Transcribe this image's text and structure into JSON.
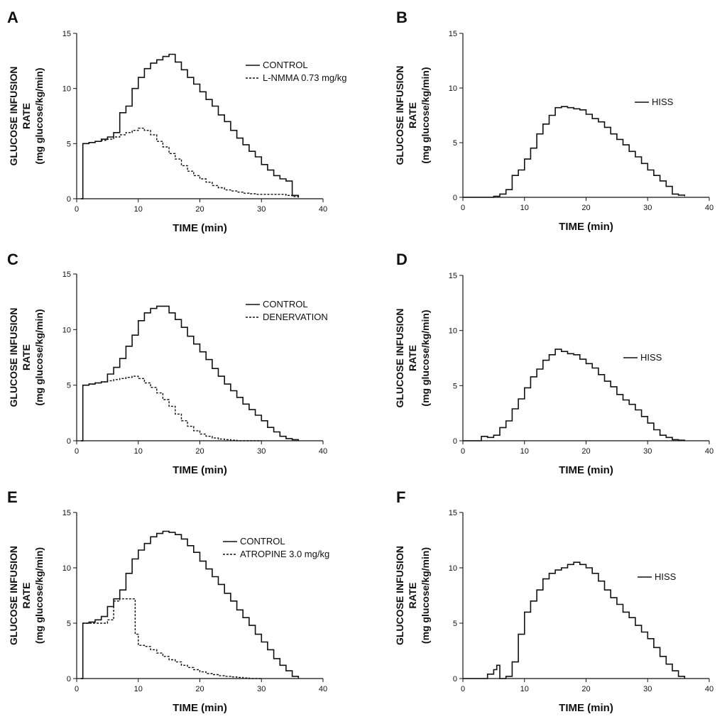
{
  "chart_data": [
    {
      "panel": "A",
      "type": "line",
      "xlabel": "TIME (min)",
      "ylabel": [
        "GLUCOSE INFUSION",
        "RATE",
        "(mg glucose/kg/min)"
      ],
      "xlim": [
        0,
        40
      ],
      "ylim": [
        0,
        15
      ],
      "xticks": [
        0,
        10,
        20,
        30,
        40
      ],
      "yticks": [
        0,
        5,
        10,
        15
      ],
      "series": [
        {
          "name": "CONTROL",
          "style": "solid",
          "x": [
            0.7,
            1,
            2,
            3,
            4,
            5,
            6,
            7,
            8,
            9,
            10,
            11,
            12,
            13,
            14,
            15,
            16,
            17,
            18,
            19,
            20,
            21,
            22,
            23,
            24,
            25,
            26,
            27,
            28,
            29,
            30,
            31,
            32,
            33,
            34,
            35,
            36
          ],
          "y": [
            0,
            5,
            5.1,
            5.2,
            5.4,
            5.6,
            6.0,
            7.8,
            8.4,
            10.0,
            11.0,
            11.8,
            12.3,
            12.6,
            12.9,
            13.1,
            12.4,
            11.7,
            11.0,
            10.4,
            9.7,
            9.0,
            8.4,
            7.6,
            7.0,
            6.2,
            5.5,
            4.9,
            4.3,
            3.8,
            3.1,
            2.6,
            2.1,
            1.8,
            1.6,
            0.3,
            0.1
          ]
        },
        {
          "name": "L-NMMA 0.73 mg/kg",
          "style": "dashed",
          "x": [
            0.7,
            1,
            2,
            3,
            4,
            5,
            6,
            7,
            8,
            9,
            10,
            11,
            12,
            13,
            14,
            15,
            16,
            17,
            18,
            19,
            20,
            21,
            22,
            23,
            24,
            25,
            26,
            27,
            28,
            29,
            30,
            31,
            32,
            33,
            34,
            35,
            36
          ],
          "y": [
            0,
            5,
            5.1,
            5.2,
            5.3,
            5.4,
            5.6,
            5.8,
            6.0,
            6.2,
            6.4,
            6.2,
            5.8,
            5.2,
            4.7,
            4.1,
            3.6,
            3.0,
            2.5,
            2.1,
            1.8,
            1.5,
            1.2,
            1.0,
            0.8,
            0.7,
            0.6,
            0.5,
            0.45,
            0.4,
            0.4,
            0.4,
            0.4,
            0.4,
            0.3,
            0.2,
            0.1
          ]
        }
      ],
      "legend": [
        "CONTROL",
        "L-NMMA 0.73 mg/kg"
      ]
    },
    {
      "panel": "B",
      "type": "line",
      "xlabel": "TIME (min)",
      "ylabel": [
        "GLUCOSE INFUSION",
        "RATE",
        "(mg glucose/kg/min)"
      ],
      "xlim": [
        0,
        40
      ],
      "ylim": [
        0,
        15
      ],
      "xticks": [
        0,
        10,
        20,
        30,
        40
      ],
      "yticks": [
        0,
        5,
        10,
        15
      ],
      "series": [
        {
          "name": "HISS",
          "style": "solid",
          "x": [
            0,
            3,
            4,
            5,
            6,
            7,
            8,
            9,
            10,
            11,
            12,
            13,
            14,
            15,
            16,
            17,
            18,
            19,
            20,
            21,
            22,
            23,
            24,
            25,
            26,
            27,
            28,
            29,
            30,
            31,
            32,
            33,
            34,
            35,
            36
          ],
          "y": [
            0,
            0,
            0,
            0.1,
            0.3,
            0.7,
            2.0,
            2.5,
            3.5,
            4.5,
            5.8,
            6.7,
            7.5,
            8.2,
            8.3,
            8.2,
            8.1,
            8.0,
            7.6,
            7.2,
            6.9,
            6.4,
            5.8,
            5.3,
            4.8,
            4.2,
            3.7,
            3.1,
            2.5,
            2.0,
            1.5,
            1.0,
            0.3,
            0.2,
            0.1
          ]
        }
      ],
      "legend": [
        "HISS"
      ]
    },
    {
      "panel": "C",
      "type": "line",
      "xlabel": "TIME (min)",
      "ylabel": [
        "GLUCOSE INFUSION",
        "RATE",
        "(mg glucose/kg/min)"
      ],
      "xlim": [
        0,
        40
      ],
      "ylim": [
        0,
        15
      ],
      "xticks": [
        0,
        10,
        20,
        30,
        40
      ],
      "yticks": [
        0,
        5,
        10,
        15
      ],
      "series": [
        {
          "name": "CONTROL",
          "style": "solid",
          "x": [
            0.7,
            1,
            2,
            3,
            4,
            5,
            6,
            7,
            8,
            9,
            10,
            11,
            12,
            13,
            14,
            15,
            16,
            17,
            18,
            19,
            20,
            21,
            22,
            23,
            24,
            25,
            26,
            27,
            28,
            29,
            30,
            31,
            32,
            33,
            34,
            35,
            36
          ],
          "y": [
            0,
            5,
            5.1,
            5.2,
            5.3,
            6.0,
            6.6,
            7.4,
            8.5,
            9.5,
            10.8,
            11.5,
            11.9,
            12.1,
            12.1,
            11.5,
            10.9,
            10.2,
            9.4,
            8.7,
            8.0,
            7.3,
            6.5,
            5.8,
            5.1,
            4.5,
            3.9,
            3.3,
            2.8,
            2.3,
            1.8,
            1.2,
            0.8,
            0.4,
            0.2,
            0.1,
            0
          ]
        },
        {
          "name": "DENERVATION",
          "style": "dashed",
          "x": [
            0.7,
            1,
            2,
            3,
            4,
            5,
            6,
            7,
            8,
            9,
            10,
            11,
            12,
            13,
            14,
            15,
            16,
            17,
            18,
            19,
            20,
            21,
            22,
            23,
            24,
            25,
            26,
            27,
            28,
            29,
            30
          ],
          "y": [
            0,
            5,
            5.1,
            5.2,
            5.3,
            5.4,
            5.5,
            5.6,
            5.7,
            5.8,
            5.6,
            5.2,
            4.8,
            4.3,
            3.7,
            3.1,
            2.4,
            1.8,
            1.3,
            0.9,
            0.6,
            0.4,
            0.25,
            0.15,
            0.1,
            0.05,
            0,
            0,
            0,
            0,
            0
          ]
        }
      ],
      "legend": [
        "CONTROL",
        "DENERVATION"
      ]
    },
    {
      "panel": "D",
      "type": "line",
      "xlabel": "TIME (min)",
      "ylabel": [
        "GLUCOSE INFUSION",
        "RATE",
        "(mg glucose/kg/min)"
      ],
      "xlim": [
        0,
        40
      ],
      "ylim": [
        0,
        15
      ],
      "xticks": [
        0,
        10,
        20,
        30,
        40
      ],
      "yticks": [
        0,
        5,
        10,
        15
      ],
      "series": [
        {
          "name": "HISS",
          "style": "solid",
          "x": [
            0,
            3,
            4,
            5,
            6,
            7,
            8,
            9,
            10,
            11,
            12,
            13,
            14,
            15,
            16,
            17,
            18,
            19,
            20,
            21,
            22,
            23,
            24,
            25,
            26,
            27,
            28,
            29,
            30,
            31,
            32,
            33,
            34,
            35,
            36
          ],
          "y": [
            0,
            0.4,
            0.3,
            0.5,
            1.2,
            1.8,
            2.9,
            3.8,
            4.8,
            5.8,
            6.5,
            7.3,
            7.8,
            8.3,
            8.1,
            7.9,
            7.8,
            7.4,
            7.0,
            6.6,
            6.0,
            5.4,
            4.9,
            4.2,
            3.7,
            3.3,
            2.8,
            2.2,
            1.6,
            1.0,
            0.5,
            0.3,
            0.1,
            0.05,
            0
          ]
        }
      ],
      "legend": [
        "HISS"
      ]
    },
    {
      "panel": "E",
      "type": "line",
      "xlabel": "TIME (min)",
      "ylabel": [
        "GLUCOSE INFUSION",
        "RATE",
        "(mg glucose/kg/min)"
      ],
      "xlim": [
        0,
        40
      ],
      "ylim": [
        0,
        15
      ],
      "xticks": [
        0,
        10,
        20,
        30,
        40
      ],
      "yticks": [
        0,
        5,
        10,
        15
      ],
      "series": [
        {
          "name": "CONTROL",
          "style": "solid",
          "x": [
            0.7,
            1,
            2,
            3,
            4,
            5,
            6,
            7,
            8,
            9,
            10,
            11,
            12,
            13,
            14,
            15,
            16,
            17,
            18,
            19,
            20,
            21,
            22,
            23,
            24,
            25,
            26,
            27,
            28,
            29,
            30,
            31,
            32,
            33,
            34,
            35,
            36
          ],
          "y": [
            0,
            5,
            5.1,
            5.3,
            5.6,
            6.5,
            7.2,
            8.0,
            9.5,
            10.8,
            11.6,
            12.2,
            12.8,
            13.1,
            13.3,
            13.2,
            13.0,
            12.6,
            12.0,
            11.4,
            10.6,
            9.9,
            9.2,
            8.5,
            7.7,
            7.0,
            6.2,
            5.5,
            4.8,
            4.0,
            3.3,
            2.6,
            1.8,
            1.2,
            0.7,
            0.2,
            0
          ]
        },
        {
          "name": "ATROPINE 3.0 mg/kg",
          "style": "dashed",
          "x": [
            0.7,
            1,
            2,
            3,
            4,
            5,
            6,
            7,
            8,
            9,
            9.5,
            10,
            11,
            12,
            13,
            14,
            15,
            16,
            17,
            18,
            19,
            20,
            21,
            22,
            23,
            24,
            25,
            26,
            27,
            28,
            29,
            30
          ],
          "y": [
            0,
            5,
            5.0,
            5.0,
            5.0,
            5.3,
            7.0,
            7.2,
            7.2,
            7.2,
            4.0,
            3.0,
            2.9,
            2.6,
            2.3,
            2.0,
            1.7,
            1.5,
            1.2,
            1.0,
            0.8,
            0.6,
            0.45,
            0.35,
            0.25,
            0.2,
            0.15,
            0.1,
            0.05,
            0,
            0,
            0
          ]
        }
      ],
      "legend": [
        "CONTROL",
        "ATROPINE 3.0 mg/kg"
      ]
    },
    {
      "panel": "F",
      "type": "line",
      "xlabel": "TIME (min)",
      "ylabel": [
        "GLUCOSE INFUSION",
        "RATE",
        "(mg glucose/kg/min)"
      ],
      "xlim": [
        0,
        40
      ],
      "ylim": [
        0,
        15
      ],
      "xticks": [
        0,
        10,
        20,
        30,
        40
      ],
      "yticks": [
        0,
        5,
        10,
        15
      ],
      "series": [
        {
          "name": "HISS",
          "style": "solid",
          "x": [
            0,
            3,
            4,
            5,
            5.5,
            6,
            7,
            8,
            9,
            10,
            11,
            12,
            13,
            14,
            15,
            16,
            17,
            18,
            19,
            20,
            21,
            22,
            23,
            24,
            25,
            26,
            27,
            28,
            29,
            30,
            31,
            32,
            33,
            34,
            35,
            36
          ],
          "y": [
            0,
            0,
            0.4,
            0.8,
            1.2,
            0,
            0.2,
            1.5,
            4.0,
            6.0,
            7.0,
            8.0,
            9.0,
            9.5,
            9.8,
            10.0,
            10.3,
            10.5,
            10.3,
            10.0,
            9.5,
            8.8,
            8.0,
            7.3,
            6.7,
            6.0,
            5.5,
            4.8,
            4.2,
            3.6,
            2.8,
            2.0,
            1.3,
            0.7,
            0.2,
            0
          ]
        }
      ],
      "legend": [
        "HISS"
      ]
    }
  ]
}
